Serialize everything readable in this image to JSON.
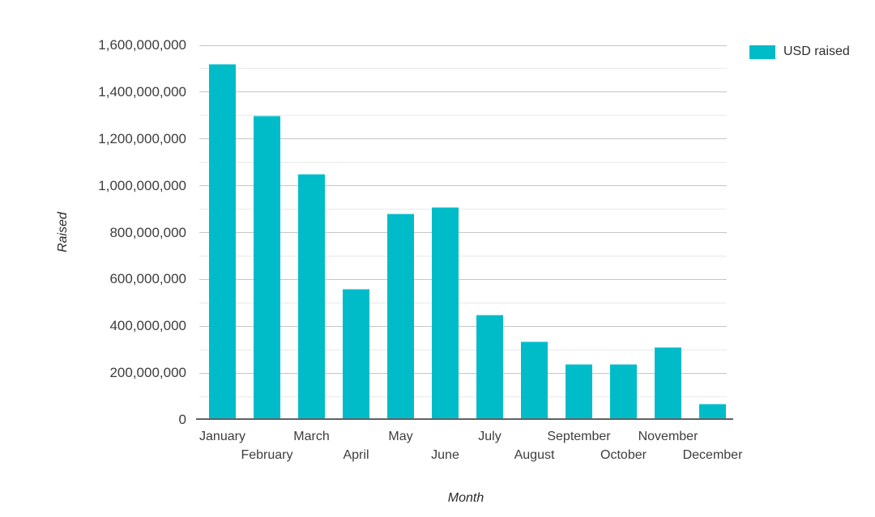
{
  "chart_data": {
    "type": "bar",
    "title": "",
    "xlabel": "Month",
    "ylabel": "Raised",
    "categories": [
      "January",
      "February",
      "March",
      "April",
      "May",
      "June",
      "July",
      "August",
      "September",
      "October",
      "November",
      "December"
    ],
    "series": [
      {
        "name": "USD raised",
        "color": "#00bcc9",
        "values": [
          1520000000,
          1300000000,
          1050000000,
          560000000,
          880000000,
          910000000,
          450000000,
          335000000,
          240000000,
          240000000,
          310000000,
          70000000
        ]
      }
    ],
    "ylim": [
      0,
      1600000000
    ],
    "y_major_step": 200000000,
    "y_minor_step": 100000000,
    "y_tick_labels": [
      "0",
      "200,000,000",
      "400,000,000",
      "600,000,000",
      "800,000,000",
      "1,000,000,000",
      "1,200,000,000",
      "1,400,000,000",
      "1,600,000,000"
    ],
    "grid": true,
    "legend_position": "top-right"
  },
  "colors": {
    "bar": "#00bcc9",
    "major_gridline": "#c6c6c6",
    "minor_gridline": "#e9e9e9",
    "axis_line": "#616161",
    "tick_text": "#3d3d3d"
  }
}
